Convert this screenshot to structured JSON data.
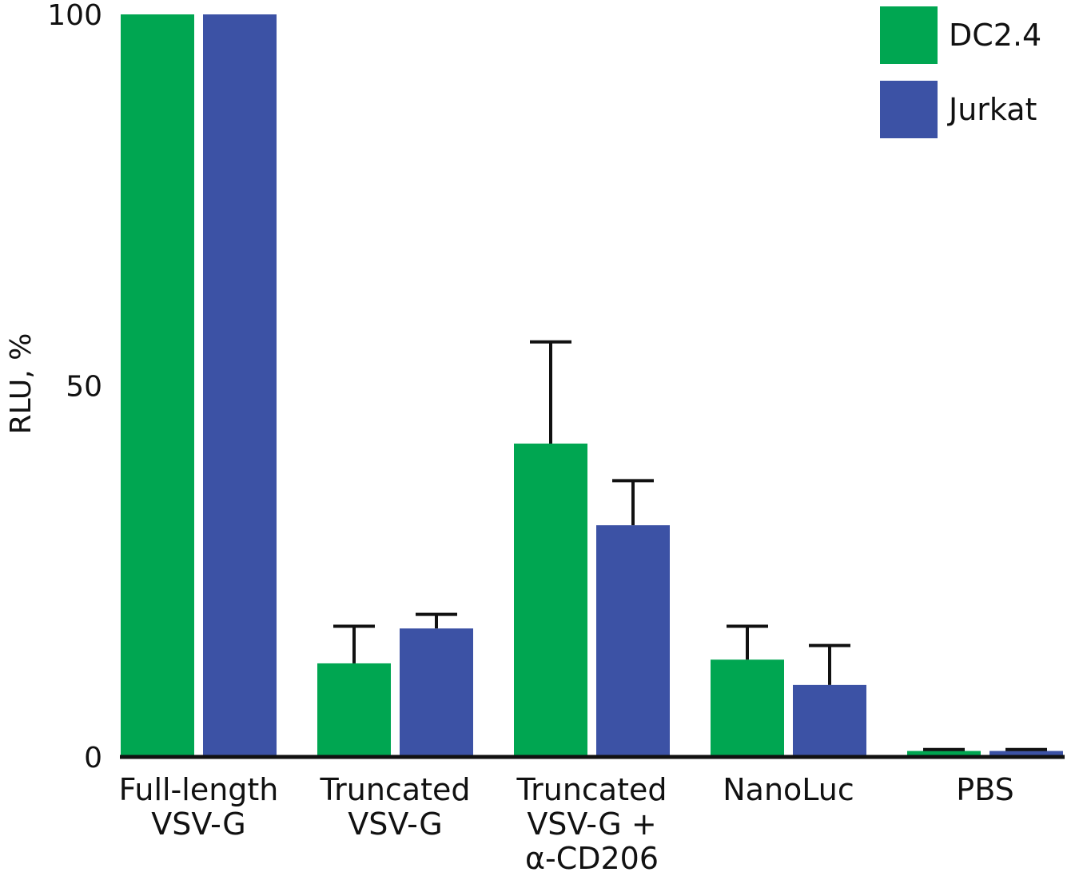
{
  "chart_data": {
    "type": "bar",
    "categories": [
      [
        "Full-length",
        "VSV-G"
      ],
      [
        "Truncated",
        "VSV-G"
      ],
      [
        "Truncated",
        "VSV-G +",
        "α-CD206"
      ],
      [
        "NanoLuc"
      ],
      [
        "PBS"
      ]
    ],
    "series": [
      {
        "name": "DC2.4",
        "color": "#00a651",
        "values": [
          100,
          12.6,
          42.2,
          13.1,
          0.8
        ],
        "errors": [
          0,
          5.0,
          13.7,
          4.5,
          0.2
        ]
      },
      {
        "name": "Jurkat",
        "color": "#3c52a5",
        "values": [
          100,
          17.3,
          31.2,
          9.7,
          0.8
        ],
        "errors": [
          0,
          1.9,
          6.0,
          5.3,
          0.2
        ]
      }
    ],
    "ylabel": "RLU, %",
    "ylim": [
      0,
      100
    ],
    "yticks": [
      0,
      50,
      100
    ],
    "legend_position": "top-right",
    "grid": false
  }
}
